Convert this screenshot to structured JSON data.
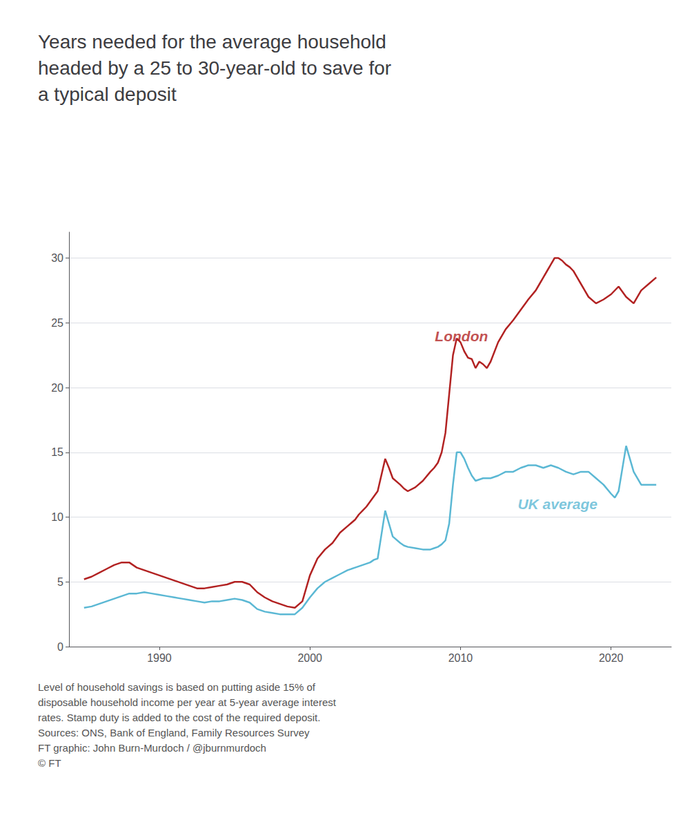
{
  "chart_data": {
    "type": "line",
    "title": "Years needed for the average household\nheaded by a 25 to 30-year-old to save for\na typical deposit",
    "footnote": "Level of household savings is based on putting aside 15% of\ndisposable household income per year at 5-year average interest\nrates. Stamp duty is added to the cost of the required deposit.\nSources: ONS, Bank of England, Family Resources Survey\nFT graphic: John Burn-Murdoch / @jburnmurdoch\n© FT",
    "xlim": [
      1984,
      2024
    ],
    "xticks": [
      1990,
      2000,
      2010,
      2020
    ],
    "ylim": [
      0,
      32
    ],
    "yticks": [
      0,
      5,
      10,
      15,
      20,
      25,
      30
    ],
    "grid": true,
    "series": [
      {
        "color": "#b22222",
        "x": [
          1985,
          1985.5,
          1986,
          1986.5,
          1987,
          1987.5,
          1988,
          1988.25,
          1988.5,
          1989,
          1989.5,
          1990,
          1990.5,
          1991,
          1991.5,
          1992,
          1992.5,
          1993,
          1993.5,
          1994,
          1994.5,
          1995,
          1995.5,
          1996,
          1996.25,
          1996.5,
          1997,
          1997.5,
          1998,
          1998.5,
          1999,
          1999.5,
          2000,
          2000.5,
          2001,
          2001.5,
          2002,
          2002.5,
          2003,
          2003.25,
          2003.5,
          2003.75,
          2004,
          2004.5,
          2005,
          2005.25,
          2005.5,
          2006,
          2006.25,
          2006.5,
          2007,
          2007.5,
          2008,
          2008.25,
          2008.5,
          2008.75,
          2009,
          2009.25,
          2009.5,
          2009.75,
          2010,
          2010.25,
          2010.5,
          2010.75,
          2011,
          2011.25,
          2011.5,
          2011.75,
          2012,
          2012.5,
          2013,
          2013.5,
          2014,
          2014.5,
          2015,
          2015.25,
          2015.5,
          2015.75,
          2016,
          2016.25,
          2016.5,
          2016.75,
          2017,
          2017.25,
          2017.5,
          2017.75,
          2018,
          2018.25,
          2018.5,
          2019,
          2019.5,
          2020,
          2020.5,
          2021,
          2021.5,
          2022,
          2022.5,
          2023
        ],
        "values": [
          5.2,
          5.4,
          5.7,
          6.0,
          6.3,
          6.5,
          6.5,
          6.3,
          6.1,
          5.9,
          5.7,
          5.5,
          5.3,
          5.1,
          4.9,
          4.7,
          4.5,
          4.5,
          4.6,
          4.7,
          4.8,
          5.0,
          5.0,
          4.8,
          4.5,
          4.2,
          3.8,
          3.5,
          3.3,
          3.1,
          3.0,
          3.5,
          5.5,
          6.8,
          7.5,
          8.0,
          8.8,
          9.3,
          9.8,
          10.2,
          10.5,
          10.8,
          11.2,
          12.0,
          14.5,
          13.8,
          13.0,
          12.5,
          12.2,
          12.0,
          12.3,
          12.8,
          13.5,
          13.8,
          14.2,
          15.0,
          16.5,
          19.5,
          22.5,
          23.8,
          23.5,
          22.8,
          22.3,
          22.2,
          21.5,
          22.0,
          21.8,
          21.5,
          22.0,
          23.5,
          24.5,
          25.2,
          26.0,
          26.8,
          27.5,
          28.0,
          28.5,
          29.0,
          29.5,
          30.0,
          30.0,
          29.8,
          29.5,
          29.3,
          29.0,
          28.5,
          28.0,
          27.5,
          27.0,
          26.5,
          26.8,
          27.2,
          27.8,
          27.0,
          26.5,
          27.5,
          28.0,
          28.5
        ]
      },
      {
        "color": "#5bb8d4",
        "x": [
          1985,
          1985.5,
          1986,
          1986.5,
          1987,
          1987.5,
          1988,
          1988.5,
          1989,
          1989.5,
          1990,
          1990.5,
          1991,
          1991.5,
          1992,
          1992.5,
          1993,
          1993.5,
          1994,
          1994.5,
          1995,
          1995.5,
          1996,
          1996.5,
          1997,
          1997.5,
          1998,
          1998.5,
          1999,
          1999.5,
          2000,
          2000.5,
          2001,
          2001.5,
          2002,
          2002.5,
          2003,
          2003.5,
          2004,
          2004.25,
          2004.5,
          2005,
          2005.25,
          2005.5,
          2006,
          2006.25,
          2006.5,
          2007,
          2007.5,
          2008,
          2008.25,
          2008.5,
          2008.75,
          2009,
          2009.25,
          2009.5,
          2009.75,
          2010,
          2010.25,
          2010.5,
          2010.75,
          2011,
          2011.5,
          2012,
          2012.5,
          2013,
          2013.5,
          2014,
          2014.5,
          2015,
          2015.5,
          2016,
          2016.5,
          2017,
          2017.5,
          2018,
          2018.5,
          2019,
          2019.5,
          2020,
          2020.25,
          2020.5,
          2021,
          2021.25,
          2021.5,
          2022,
          2022.5,
          2023
        ],
        "values": [
          3.0,
          3.1,
          3.3,
          3.5,
          3.7,
          3.9,
          4.1,
          4.1,
          4.2,
          4.1,
          4.0,
          3.9,
          3.8,
          3.7,
          3.6,
          3.5,
          3.4,
          3.5,
          3.5,
          3.6,
          3.7,
          3.6,
          3.4,
          2.9,
          2.7,
          2.6,
          2.5,
          2.5,
          2.5,
          3.0,
          3.8,
          4.5,
          5.0,
          5.3,
          5.6,
          5.9,
          6.1,
          6.3,
          6.5,
          6.7,
          6.8,
          10.5,
          9.5,
          8.5,
          8.0,
          7.8,
          7.7,
          7.6,
          7.5,
          7.5,
          7.6,
          7.7,
          7.9,
          8.2,
          9.5,
          12.5,
          15.0,
          15.0,
          14.5,
          13.8,
          13.2,
          12.8,
          13.0,
          13.0,
          13.2,
          13.5,
          13.5,
          13.8,
          14.0,
          14.0,
          13.8,
          14.0,
          13.8,
          13.5,
          13.3,
          13.5,
          13.5,
          13.0,
          12.5,
          11.8,
          11.5,
          12.0,
          15.5,
          14.5,
          13.5,
          12.5,
          12.5,
          12.5
        ]
      }
    ],
    "annotations": [
      {
        "text": "London",
        "x": 2008.3,
        "y": 24.0,
        "color": "#b22222"
      },
      {
        "text": "UK average",
        "x": 2013.8,
        "y": 11.0,
        "color": "#5bb8d4"
      }
    ]
  }
}
